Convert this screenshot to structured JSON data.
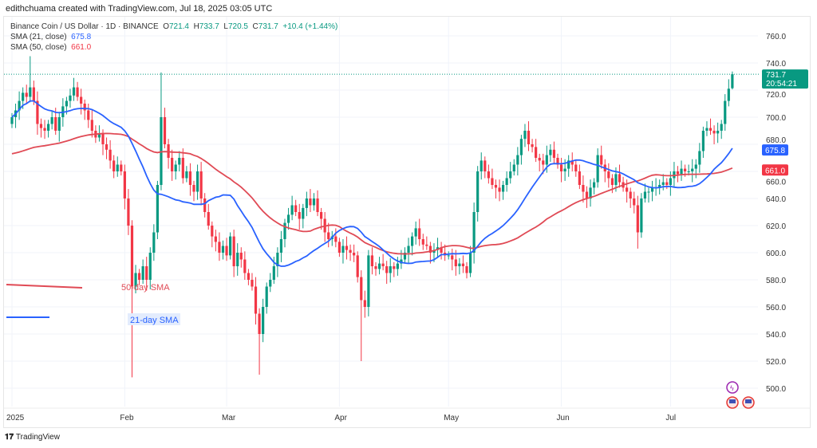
{
  "header": {
    "credit": "edithchuama created with TradingView.com, Jul 18, 2025 03:05 UTC"
  },
  "legend": {
    "symbol": "Binance Coin / US Dollar · 1D · BINANCE",
    "o_label": "O",
    "o": "721.4",
    "h_label": "H",
    "h": "733.7",
    "l_label": "L",
    "l": "720.5",
    "c_label": "C",
    "c": "731.7",
    "change": "+10.4 (+1.44%)",
    "sma21_label": "SMA (21, close)",
    "sma21": "675.8",
    "sma50_label": "SMA (50, close)",
    "sma50": "661.0"
  },
  "price_tag": {
    "price": "731.7",
    "countdown": "20:54:21"
  },
  "sma21_tag": "675.8",
  "sma50_tag": "661.0",
  "annotations": {
    "sma50": "50-day SMA",
    "sma21": "21-day SMA"
  },
  "brand": "TradingView",
  "colors": {
    "up": "#089981",
    "down": "#f23645",
    "sma21": "#2962ff",
    "sma50": "#e04a55",
    "grid": "#f0f3fa"
  },
  "icons": [
    "lightning-event-icon",
    "us-flag-event-icon",
    "us-flag-event-icon"
  ],
  "chart_data": {
    "type": "candlestick",
    "start_date": "2025-01-01",
    "end_date": "2025-07-18",
    "ylim": [
      490,
      770
    ],
    "y_ticks": [
      "760.0",
      "740.0",
      "720.0",
      "700.0",
      "680.0",
      "660.0",
      "640.0",
      "620.0",
      "600.0",
      "580.0",
      "560.0",
      "540.0",
      "520.0",
      "500.0"
    ],
    "x_ticks": [
      "2025",
      "Feb",
      "Mar",
      "Apr",
      "May",
      "Jun",
      "Jul"
    ],
    "closes": [
      700,
      705,
      712,
      718,
      715,
      722,
      712,
      695,
      692,
      690,
      695,
      700,
      690,
      700,
      708,
      712,
      716,
      722,
      715,
      710,
      705,
      698,
      690,
      685,
      688,
      680,
      676,
      668,
      660,
      665,
      660,
      640,
      620,
      575,
      585,
      580,
      590,
      580,
      600,
      615,
      650,
      700,
      680,
      670,
      660,
      665,
      670,
      655,
      660,
      650,
      645,
      660,
      640,
      630,
      620,
      612,
      608,
      600,
      605,
      598,
      612,
      590,
      600,
      595,
      585,
      580,
      575,
      555,
      540,
      560,
      575,
      580,
      590,
      600,
      610,
      622,
      628,
      635,
      630,
      625,
      633,
      640,
      635,
      640,
      630,
      625,
      615,
      610,
      612,
      608,
      600,
      605,
      602,
      600,
      598,
      582,
      565,
      560,
      598,
      590,
      588,
      592,
      590,
      585,
      590,
      588,
      592,
      595,
      600,
      605,
      612,
      618,
      610,
      606,
      605,
      600,
      602,
      604,
      600,
      598,
      598,
      595,
      590,
      592,
      590,
      585,
      600,
      630,
      660,
      668,
      660,
      655,
      650,
      648,
      645,
      650,
      655,
      660,
      665,
      672,
      684,
      690,
      680,
      678,
      670,
      668,
      665,
      672,
      676,
      670,
      665,
      660,
      662,
      668,
      665,
      660,
      650,
      645,
      640,
      648,
      652,
      672,
      665,
      660,
      655,
      650,
      658,
      652,
      648,
      645,
      640,
      635,
      615,
      640,
      645,
      645,
      648,
      648,
      650,
      652,
      650,
      655,
      660,
      658,
      662,
      660,
      660,
      662,
      665,
      675,
      690,
      692,
      690,
      688,
      690,
      695,
      712,
      721,
      731.7
    ],
    "last_open": 721.4,
    "last_high": 733.7,
    "last_low": 720.5,
    "wick_extremes": [
      {
        "day": "2025-01-06",
        "high": 745
      },
      {
        "day": "2025-02-03",
        "low": 508
      },
      {
        "day": "2025-02-11",
        "high": 733
      },
      {
        "day": "2025-03-10",
        "low": 510
      },
      {
        "day": "2025-04-07",
        "low": 520
      },
      {
        "day": "2025-06-22",
        "low": 603
      }
    ],
    "series": [
      {
        "name": "SMA (21, close)",
        "last": 675.8
      },
      {
        "name": "SMA (50, close)",
        "last": 661.0
      }
    ],
    "grid": true
  }
}
